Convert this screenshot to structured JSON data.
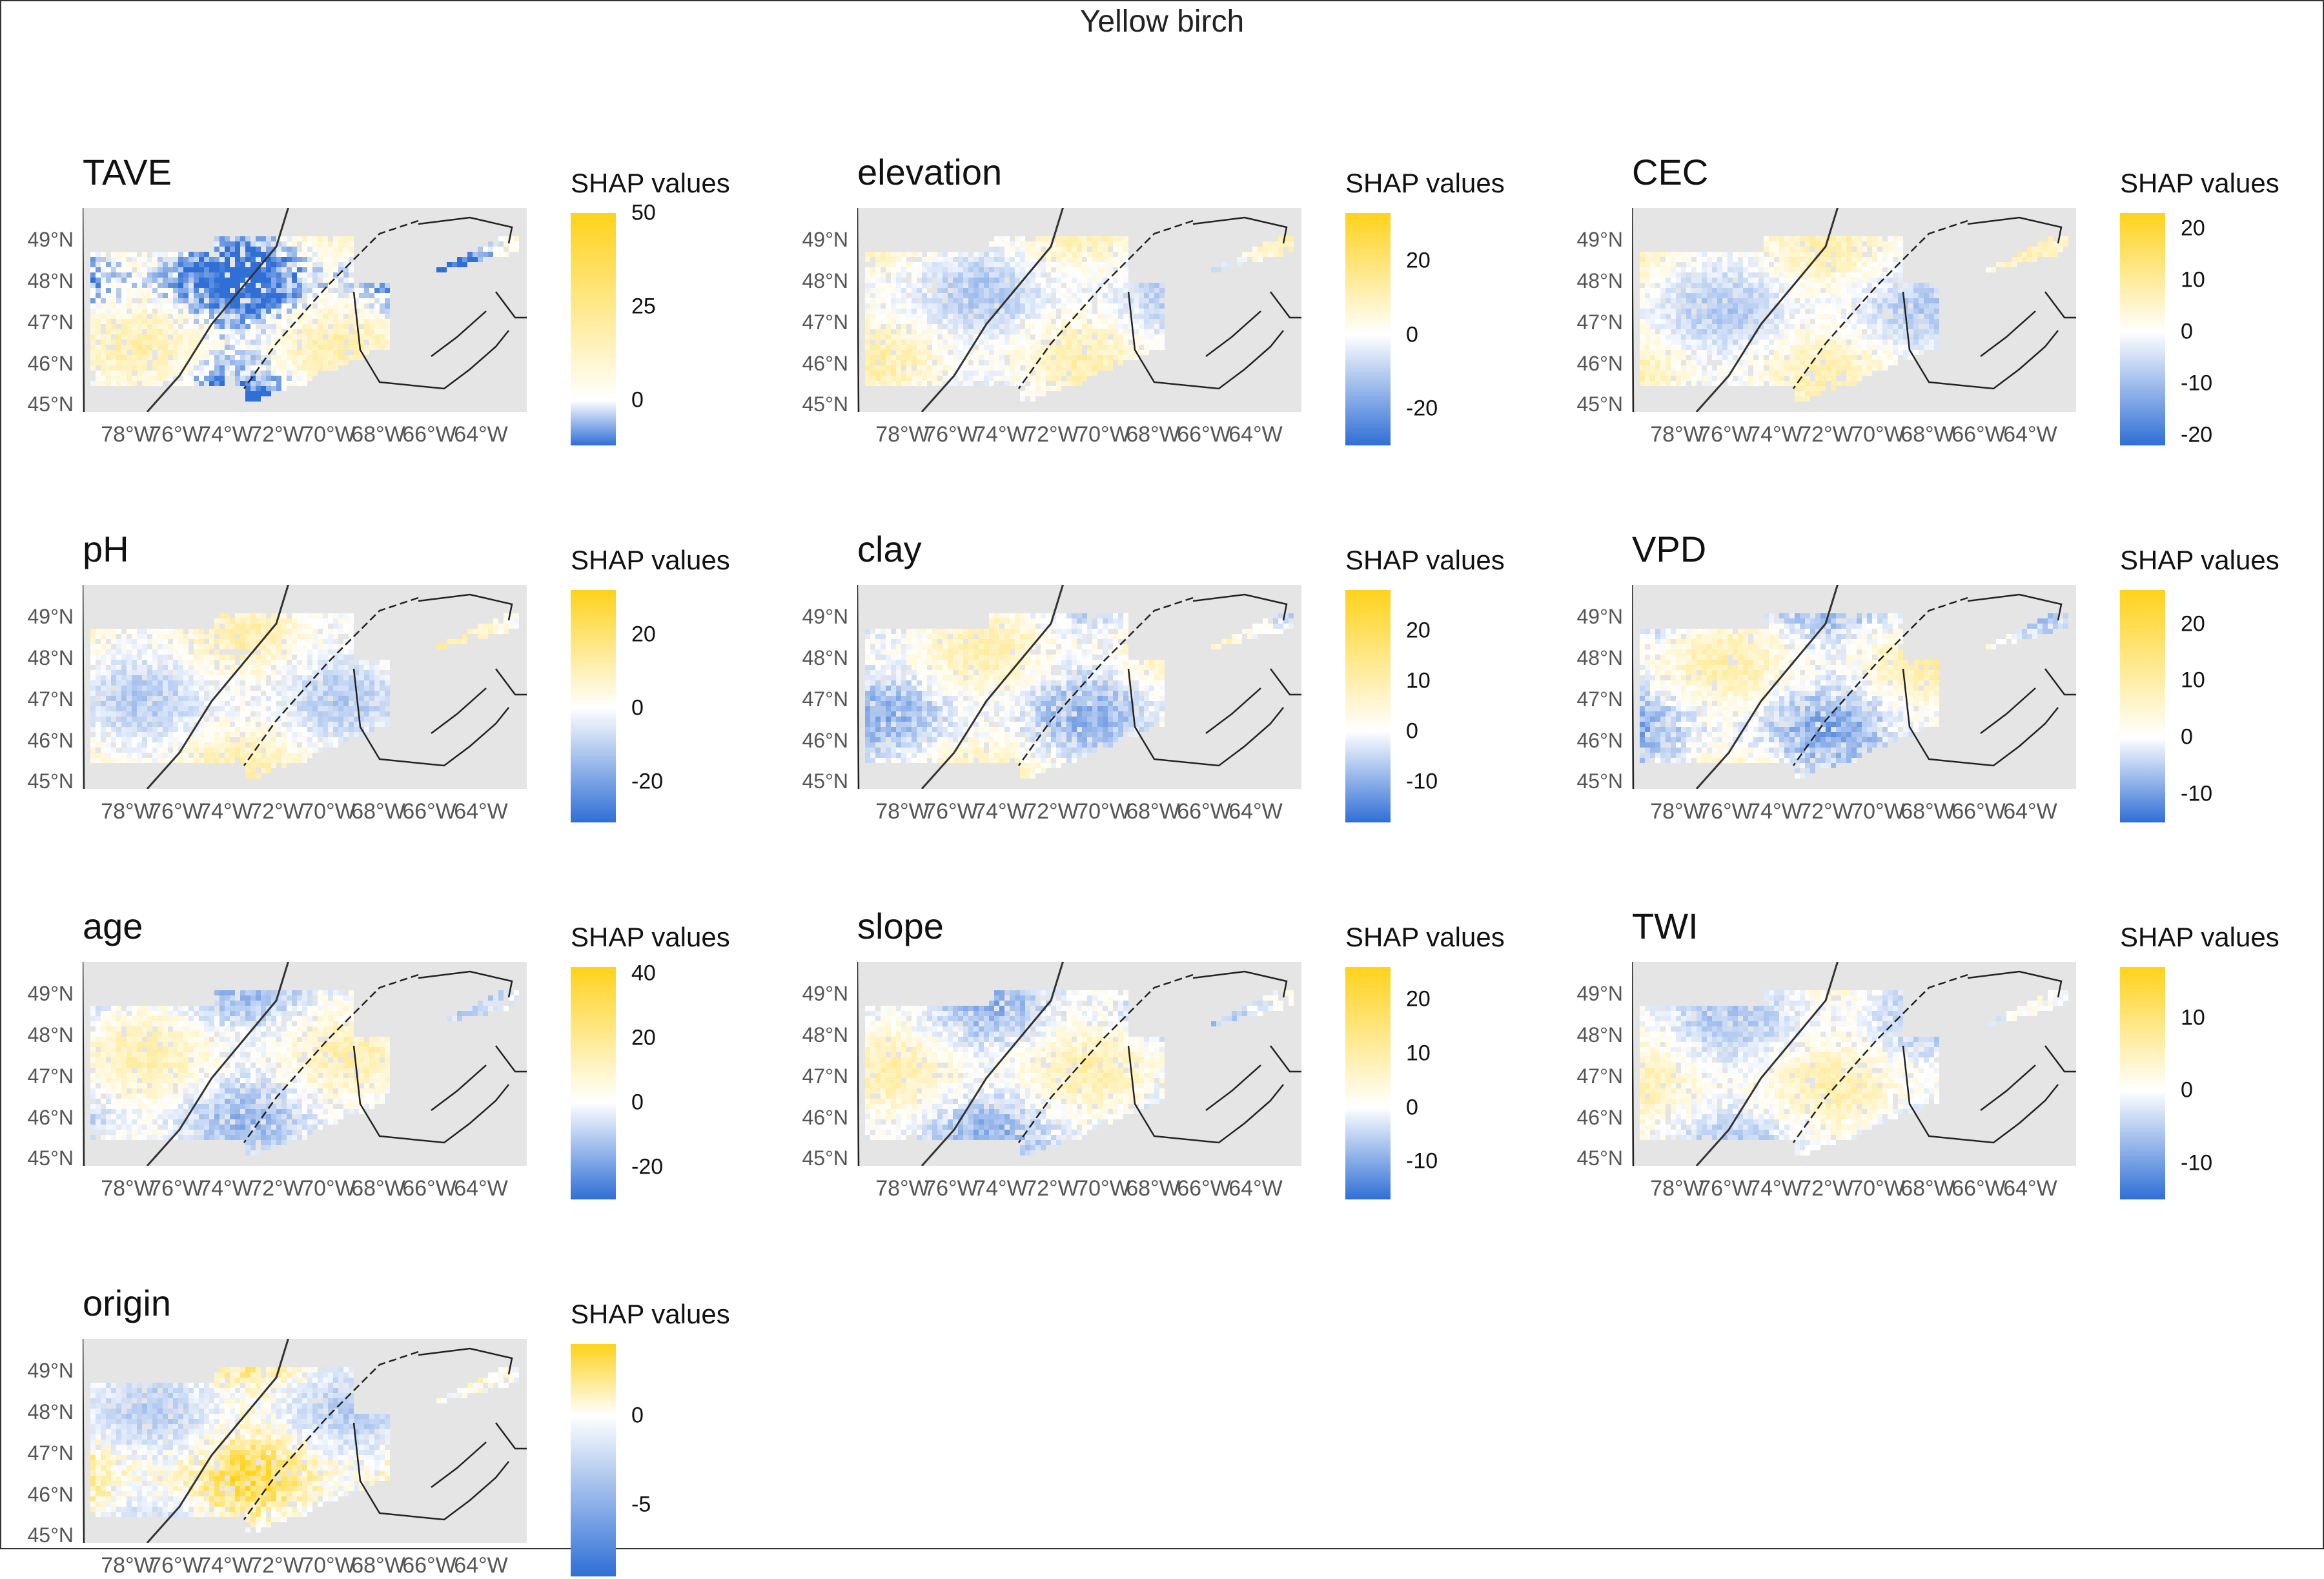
{
  "figure_title": "Yellow birch",
  "legend_title": "SHAP values",
  "lat_labels": [
    "49°N",
    "48°N",
    "47°N",
    "46°N",
    "45°N"
  ],
  "lon_labels": [
    "78°W",
    "76°W",
    "74°W",
    "72°W",
    "70°W",
    "68°W",
    "66°W",
    "64°W"
  ],
  "colors": {
    "low": "#2f6fd6",
    "mid": "#ffffff",
    "high": "#ffd21a",
    "background": "#e5e5e5"
  },
  "panels": [
    {
      "name": "TAVE",
      "min": -12,
      "max": 50,
      "ticks": [
        50,
        25,
        0
      ]
    },
    {
      "name": "elevation",
      "min": -30,
      "max": 33,
      "ticks": [
        20,
        0,
        -20
      ]
    },
    {
      "name": "CEC",
      "min": -22,
      "max": 23,
      "ticks": [
        20,
        10,
        0,
        -10,
        -20
      ]
    },
    {
      "name": "pH",
      "min": -31,
      "max": 32,
      "ticks": [
        20,
        0,
        -20
      ]
    },
    {
      "name": "clay",
      "min": -18,
      "max": 28,
      "ticks": [
        20,
        10,
        0,
        -10
      ]
    },
    {
      "name": "VPD",
      "min": -15,
      "max": 26,
      "ticks": [
        20,
        10,
        0,
        -10
      ]
    },
    {
      "name": "age",
      "min": -30,
      "max": 42,
      "ticks": [
        40,
        20,
        0,
        -20
      ]
    },
    {
      "name": "slope",
      "min": -17,
      "max": 26,
      "ticks": [
        20,
        10,
        0,
        -10
      ]
    },
    {
      "name": "TWI",
      "min": -15,
      "max": 17,
      "ticks": [
        10,
        0,
        -10
      ]
    },
    {
      "name": "origin",
      "min": -9,
      "max": 4,
      "ticks": [
        0,
        -5
      ]
    }
  ]
}
